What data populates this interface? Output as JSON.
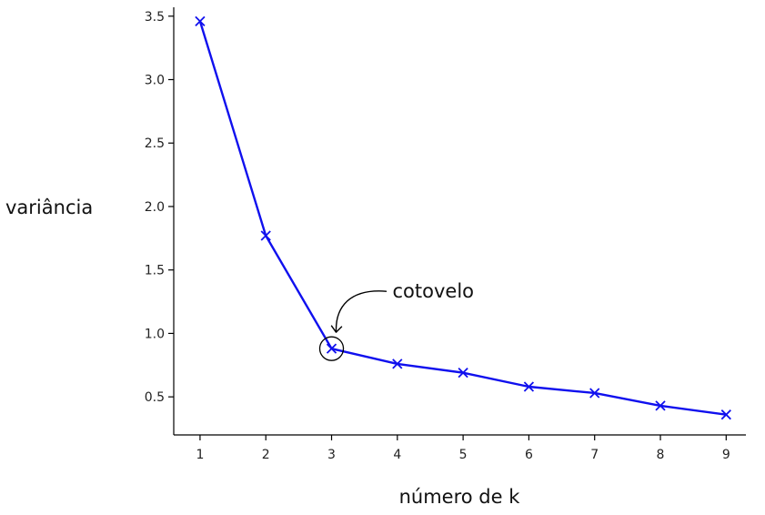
{
  "chart_data": {
    "type": "line",
    "x": [
      1,
      2,
      3,
      4,
      5,
      6,
      7,
      8,
      9
    ],
    "series": [
      {
        "values": [
          3.46,
          1.77,
          0.88,
          0.76,
          0.69,
          0.58,
          0.53,
          0.43,
          0.36
        ],
        "color": "#1010ee",
        "marker": "x"
      }
    ],
    "xticks": [
      "1",
      "2",
      "3",
      "4",
      "5",
      "6",
      "7",
      "8",
      "9"
    ],
    "yticks": [
      "0.5",
      "1.0",
      "1.5",
      "2.0",
      "2.5",
      "3.0",
      "3.5"
    ],
    "xlabel": "número de k",
    "ylabel": "variância",
    "xlim": [
      0.6,
      9.3
    ],
    "ylim": [
      0.2,
      3.57
    ],
    "grid": false,
    "annotation": {
      "text": "cotovelo",
      "x": 3,
      "y": 0.88
    }
  }
}
